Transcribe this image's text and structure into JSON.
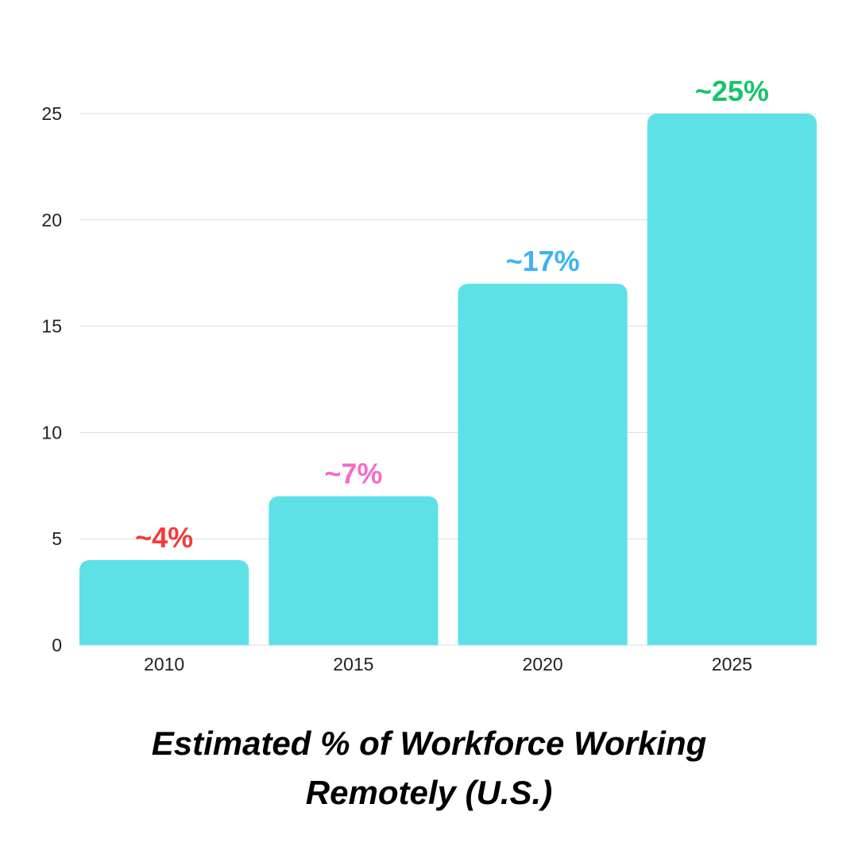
{
  "chart_data": {
    "type": "bar",
    "title": "Estimated % of Workforce Working Remotely (U.S.)",
    "categories": [
      "2010",
      "2015",
      "2020",
      "2025"
    ],
    "values": [
      4,
      7,
      17,
      25
    ],
    "value_labels": [
      "~4%",
      "~7%",
      "~17%",
      "~25%"
    ],
    "value_label_colors": [
      "#f23c3c",
      "#f46cc9",
      "#3db3f2",
      "#16c46c"
    ],
    "color": "#5ee1e6",
    "ylim": [
      0,
      25
    ],
    "yticks": [
      0,
      5,
      10,
      15,
      20,
      25
    ],
    "grid": true
  }
}
